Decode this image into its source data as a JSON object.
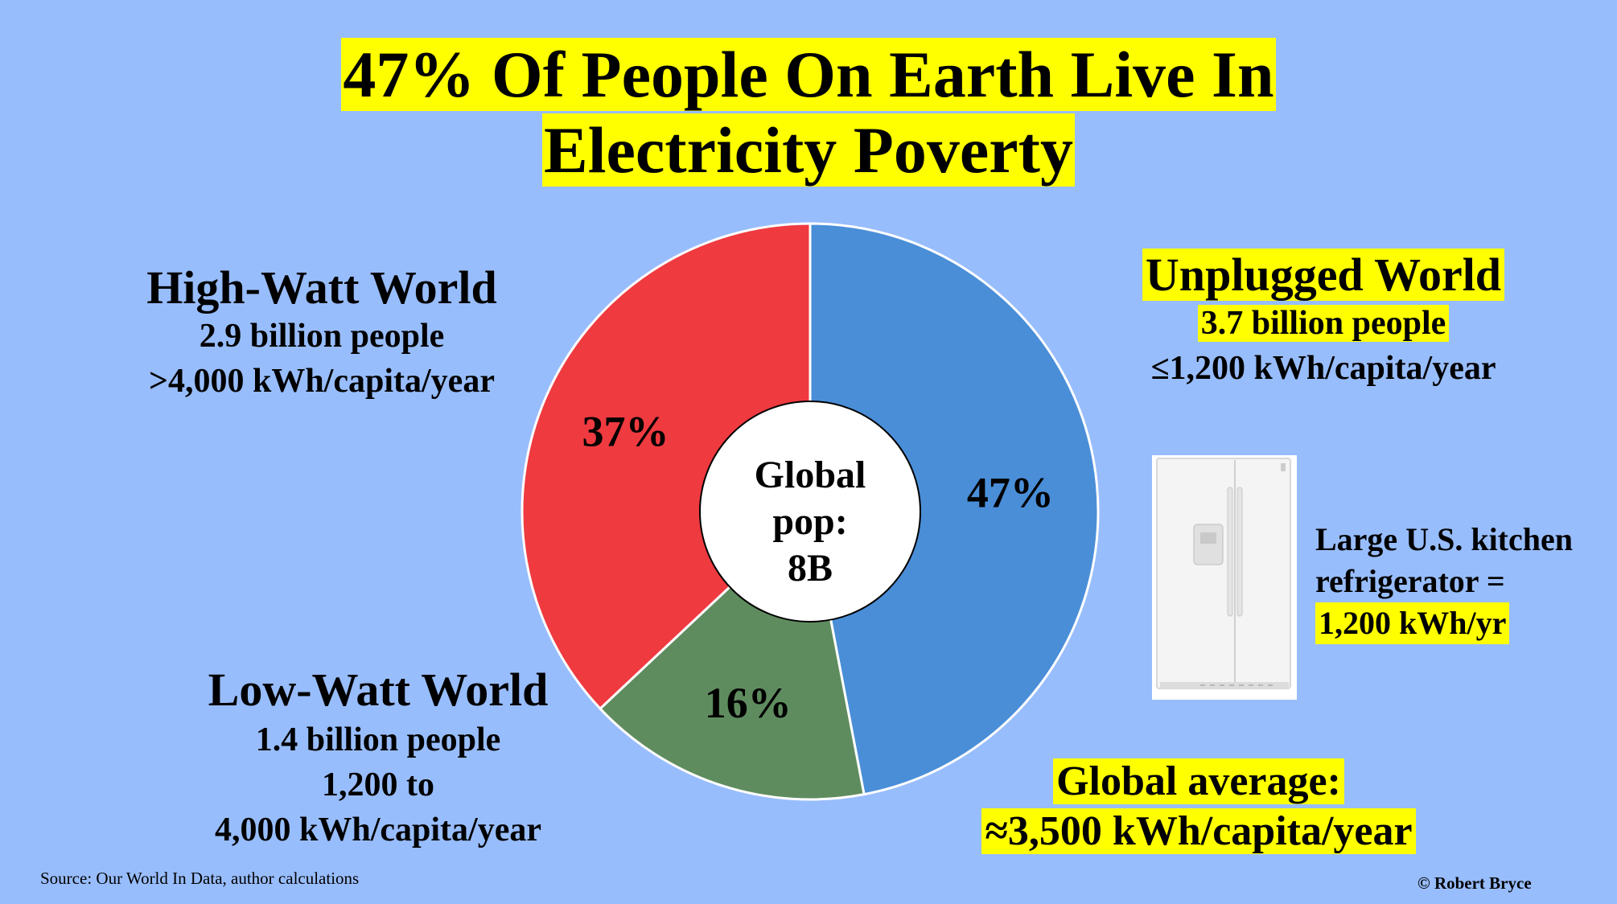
{
  "title": {
    "line1": "47% Of People On Earth Live In",
    "line2": "Electricity Poverty"
  },
  "chart_data": {
    "type": "pie",
    "title": "47% Of People On Earth Live In Electricity Poverty",
    "center_label": [
      "Global",
      "pop:",
      "8B"
    ],
    "slices": [
      {
        "name": "Unplugged World",
        "value": 47,
        "label": "47%",
        "color": "#4a8ed8"
      },
      {
        "name": "Low-Watt World",
        "value": 16,
        "label": "16%",
        "color": "#5f8c5f"
      },
      {
        "name": "High-Watt World",
        "value": 37,
        "label": "37%",
        "color": "#ef3a40"
      }
    ]
  },
  "groups": {
    "high_watt": {
      "name": "High-Watt World",
      "people": "2.9 billion people",
      "usage": ">4,000 kWh/capita/year"
    },
    "unplugged": {
      "name": "Unplugged World",
      "people": "3.7 billion people",
      "usage": "≤1,200 kWh/capita/year"
    },
    "low_watt": {
      "name": "Low-Watt World",
      "people": "1.4 billion people",
      "usage_line1": "1,200 to",
      "usage_line2": "4,000 kWh/capita/year"
    }
  },
  "global_average": {
    "label": "Global average:",
    "value": "≈3,500 kWh/capita/year"
  },
  "fridge": {
    "line1": "Large U.S. kitchen",
    "line2": "refrigerator =",
    "line3": "1,200 kWh/yr",
    "icon": "refrigerator-image"
  },
  "source": "Source: Our World In Data, author calculations",
  "copyright": "© Robert Bryce",
  "colors": {
    "background": "#98bdfd",
    "highlight": "#ffff00"
  }
}
